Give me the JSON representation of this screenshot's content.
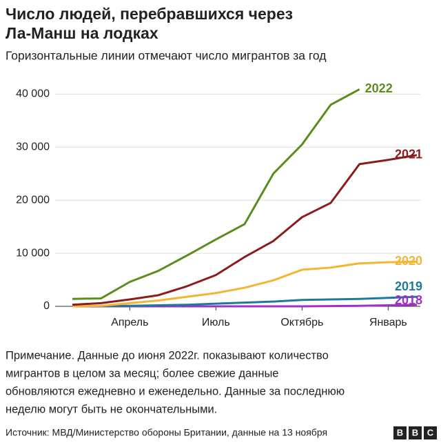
{
  "chart_data": {
    "type": "line",
    "title": [
      "Число людей, перебравшихся через",
      "Ла-Манш на лодках"
    ],
    "subtitle": "Горизонтальные линии отмечают число мигрантов за год",
    "categories": [
      null,
      null,
      "Апрель",
      null,
      null,
      "Июль",
      null,
      null,
      "Октябрь",
      null,
      null,
      "Январь",
      null
    ],
    "series": [
      {
        "name": "2022",
        "color": "#5a8c1e",
        "values": [
          1400,
          1500,
          4600,
          6700,
          9600,
          12600,
          15500,
          25000,
          30500,
          38000,
          40900,
          null,
          null
        ]
      },
      {
        "name": "2021",
        "color": "#8c1c1c",
        "values": [
          300,
          600,
          1300,
          2100,
          3800,
          5900,
          9300,
          12300,
          16800,
          19500,
          26800,
          27600,
          28500
        ]
      },
      {
        "name": "2020",
        "color": "#f2b632",
        "values": [
          0,
          100,
          600,
          1100,
          1800,
          2500,
          3500,
          4900,
          6900,
          7300,
          8100,
          8300,
          8400
        ]
      },
      {
        "name": "2019",
        "color": "#1f7a99",
        "values": [
          0,
          50,
          100,
          200,
          300,
          500,
          700,
          900,
          1200,
          1300,
          1400,
          1600,
          1800
        ]
      },
      {
        "name": "2018",
        "color": "#a22fc9",
        "values": [
          0,
          0,
          0,
          0,
          0,
          0,
          0,
          0,
          0,
          50,
          100,
          200,
          300
        ]
      }
    ],
    "ylim": [
      0,
      42000
    ],
    "yticks": [
      0,
      {
        "value": 10000,
        "label": "10 000"
      },
      {
        "value": 20000,
        "label": "20 000"
      },
      {
        "value": 30000,
        "label": "30 000"
      },
      {
        "value": 40000,
        "label": "40 000"
      }
    ],
    "grid": true,
    "note": [
      "Примечание. Данные до июня 2022г. показывают количество",
      "мигрантов в целом за месяц; более свежие данные",
      "обновляются ежедневно и еженедельно. Данные за последнюю",
      "неделю могут быть не окончательными."
    ],
    "source": "Источник: МВД/Министерство обороны Британии, данные на 13 ноября",
    "logo": [
      "B",
      "B",
      "C"
    ]
  }
}
